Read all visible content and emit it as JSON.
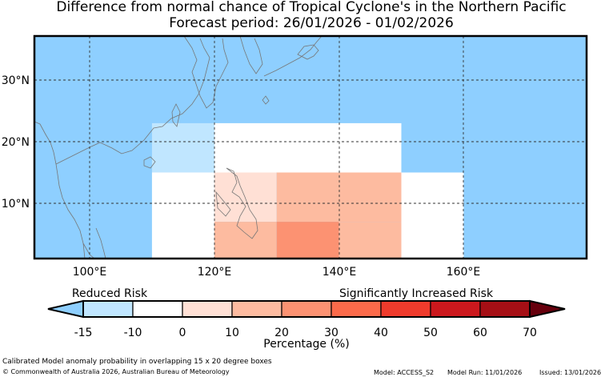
{
  "title": {
    "line1": "Difference from normal chance of Tropical Cyclone's in the Northern Pacific",
    "line2": "Forecast period: 26/01/2026 - 01/02/2026"
  },
  "map": {
    "region": "Northern Pacific",
    "lon_ticks": [
      "100°E",
      "120°E",
      "140°E",
      "160°E"
    ],
    "lat_ticks": [
      "30°N",
      "20°N",
      "10°N"
    ],
    "ocean_color": "#8ecfff",
    "grid_style": "dashed",
    "cells": [
      {
        "lon": [
          110,
          120
        ],
        "lat": [
          15,
          23
        ],
        "category": "-15 to -10",
        "color": "#c0e6ff"
      },
      {
        "lon": [
          120,
          150
        ],
        "lat": [
          15,
          23
        ],
        "category": "-10 to 0",
        "color": "#ffffff"
      },
      {
        "lon": [
          110,
          120
        ],
        "lat": [
          0,
          15
        ],
        "category": "-10 to 0",
        "color": "#ffffff"
      },
      {
        "lon": [
          120,
          130
        ],
        "lat": [
          7,
          15
        ],
        "category": "0 to 10",
        "color": "#ffe0d5"
      },
      {
        "lon": [
          130,
          150
        ],
        "lat": [
          7,
          15
        ],
        "category": "10 to 20",
        "color": "#fdbba0"
      },
      {
        "lon": [
          150,
          160
        ],
        "lat": [
          0,
          15
        ],
        "category": "-10 to 0",
        "color": "#ffffff"
      },
      {
        "lon": [
          120,
          130
        ],
        "lat": [
          0,
          7
        ],
        "category": "10 to 20",
        "color": "#fdbba0"
      },
      {
        "lon": [
          130,
          140
        ],
        "lat": [
          0,
          7
        ],
        "category": "20 to 30",
        "color": "#fc9272"
      },
      {
        "lon": [
          140,
          150
        ],
        "lat": [
          0,
          7
        ],
        "category": "10 to 20",
        "color": "#fdbba0"
      }
    ]
  },
  "colorbar": {
    "label_left": "Reduced Risk",
    "label_right": "Significantly Increased Risk",
    "xlabel": "Percentage (%)",
    "tick_labels": [
      "-15",
      "-10",
      "0",
      "10",
      "20",
      "30",
      "40",
      "50",
      "60",
      "70"
    ],
    "under_color": "#8ecfff",
    "over_color": "#67000d",
    "colors": [
      "#c0e6ff",
      "#ffffff",
      "#ffe0d5",
      "#fdbba0",
      "#fc9272",
      "#fb6a4a",
      "#ef3b2c",
      "#cb181d",
      "#a50f15"
    ]
  },
  "footer": {
    "description": "Calibrated Model anomaly probability in overlapping 15 x 20 degree boxes",
    "copyright": "© Commonwealth of Australia 2026, Australian Bureau of Meteorology",
    "model": "Model: ACCESS_S2",
    "model_run": "Model Run: 11/01/2026",
    "issued": "Issued: 13/01/2026"
  }
}
